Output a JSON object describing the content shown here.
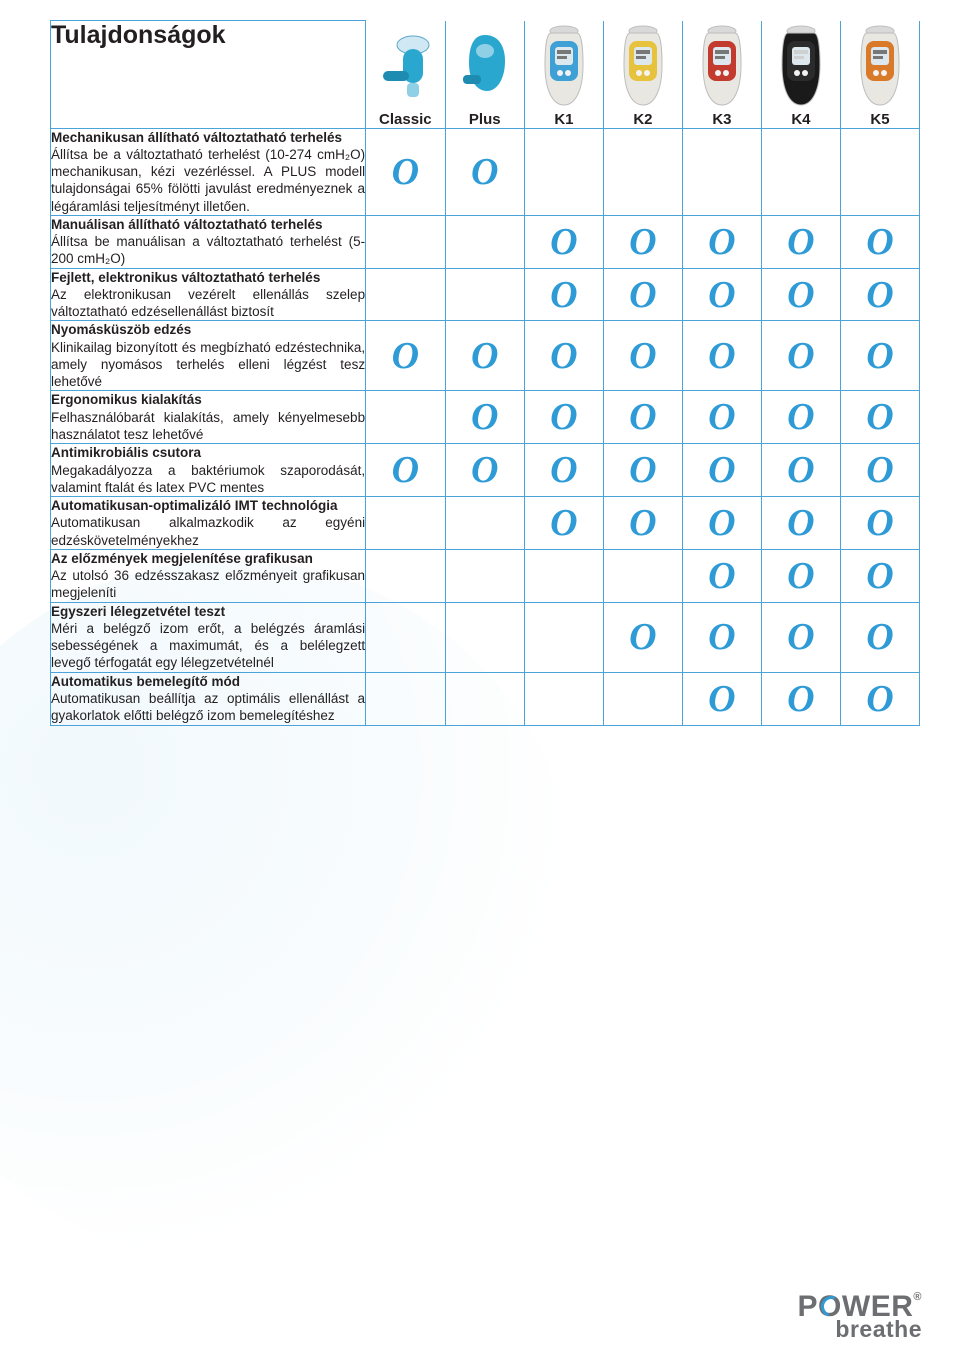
{
  "title": "Tulajdonságok",
  "checkGlyph": "O",
  "colors": {
    "border": "#4aa4d9",
    "check": "#2e9bd6",
    "text": "#231f20",
    "logoGray": "#6d6e71"
  },
  "products": [
    {
      "id": "classic",
      "label": "Classic",
      "svg": "classic"
    },
    {
      "id": "plus",
      "label": "Plus",
      "svg": "plus"
    },
    {
      "id": "k1",
      "label": "K1",
      "svg": "k_blue"
    },
    {
      "id": "k2",
      "label": "K2",
      "svg": "k_yellow"
    },
    {
      "id": "k3",
      "label": "K3",
      "svg": "k_red"
    },
    {
      "id": "k4",
      "label": "K4",
      "svg": "k_black"
    },
    {
      "id": "k5",
      "label": "K5",
      "svg": "k_orange"
    }
  ],
  "features": [
    {
      "title": "Mechanikusan állítható változtatható terhelés",
      "desc": "Állítsa be a változtatható terhelést (10-274 cmH₂O) mechanikusan, kézi vezérléssel. A PLUS modell tulajdonságai 65% fölötti javulást eredményeznek a légáramlási teljesítményt illetően.",
      "checks": [
        true,
        true,
        false,
        false,
        false,
        false,
        false
      ]
    },
    {
      "title": "Manuálisan állítható változtatható terhelés",
      "desc": "Állítsa be manuálisan a változtatható terhelést (5-200 cmH₂O)",
      "checks": [
        false,
        false,
        true,
        true,
        true,
        true,
        true
      ]
    },
    {
      "title": "Fejlett, elektronikus változtatható terhelés",
      "desc": "Az elektronikusan vezérelt ellenállás szelep változtatható edzésellenállást biztosít",
      "checks": [
        false,
        false,
        true,
        true,
        true,
        true,
        true
      ]
    },
    {
      "title": "Nyomásküszöb edzés",
      "desc": "Klinikailag bizonyított és megbízható edzéstechnika, amely nyomásos terhelés elleni légzést tesz lehetővé",
      "checks": [
        true,
        true,
        true,
        true,
        true,
        true,
        true
      ]
    },
    {
      "title": "Ergonomikus kialakítás",
      "desc": "Felhasználóbarát kialakítás, amely kényelmesebb használatot tesz lehetővé",
      "checks": [
        false,
        true,
        true,
        true,
        true,
        true,
        true
      ]
    },
    {
      "title": "Antimikrobiális csutora",
      "desc": "Megakadályozza a baktériumok szaporodását, valamint ftalát és latex PVC mentes",
      "checks": [
        true,
        true,
        true,
        true,
        true,
        true,
        true
      ]
    },
    {
      "title": "Automatikusan-optimalizáló IMT technológia",
      "desc": "Automatikusan alkalmazkodik az egyéni edzéskövetelményekhez",
      "checks": [
        false,
        false,
        true,
        true,
        true,
        true,
        true
      ]
    },
    {
      "title": "Az előzmények megjelenítése grafikusan",
      "desc": "Az utolsó 36 edzésszakasz előzményeit grafikusan megjeleníti",
      "checks": [
        false,
        false,
        false,
        false,
        true,
        true,
        true
      ]
    },
    {
      "title": "Egyszeri lélegzetvétel teszt",
      "desc": "Méri a belégző izom erőt, a belégzés áramlási sebességének a maximumát, és a belélegzett levegő térfogatát egy lélegzetvételnél",
      "checks": [
        false,
        false,
        false,
        true,
        true,
        true,
        true
      ]
    },
    {
      "title": "Automatikus bemelegítő mód",
      "desc": "Automatikusan beállítja az optimális ellenállást a gyakorlatok előtti belégző izom bemelegítéshez",
      "checks": [
        false,
        false,
        false,
        false,
        true,
        true,
        true
      ]
    }
  ],
  "logo": {
    "main": "POWER",
    "sub": "breathe"
  }
}
